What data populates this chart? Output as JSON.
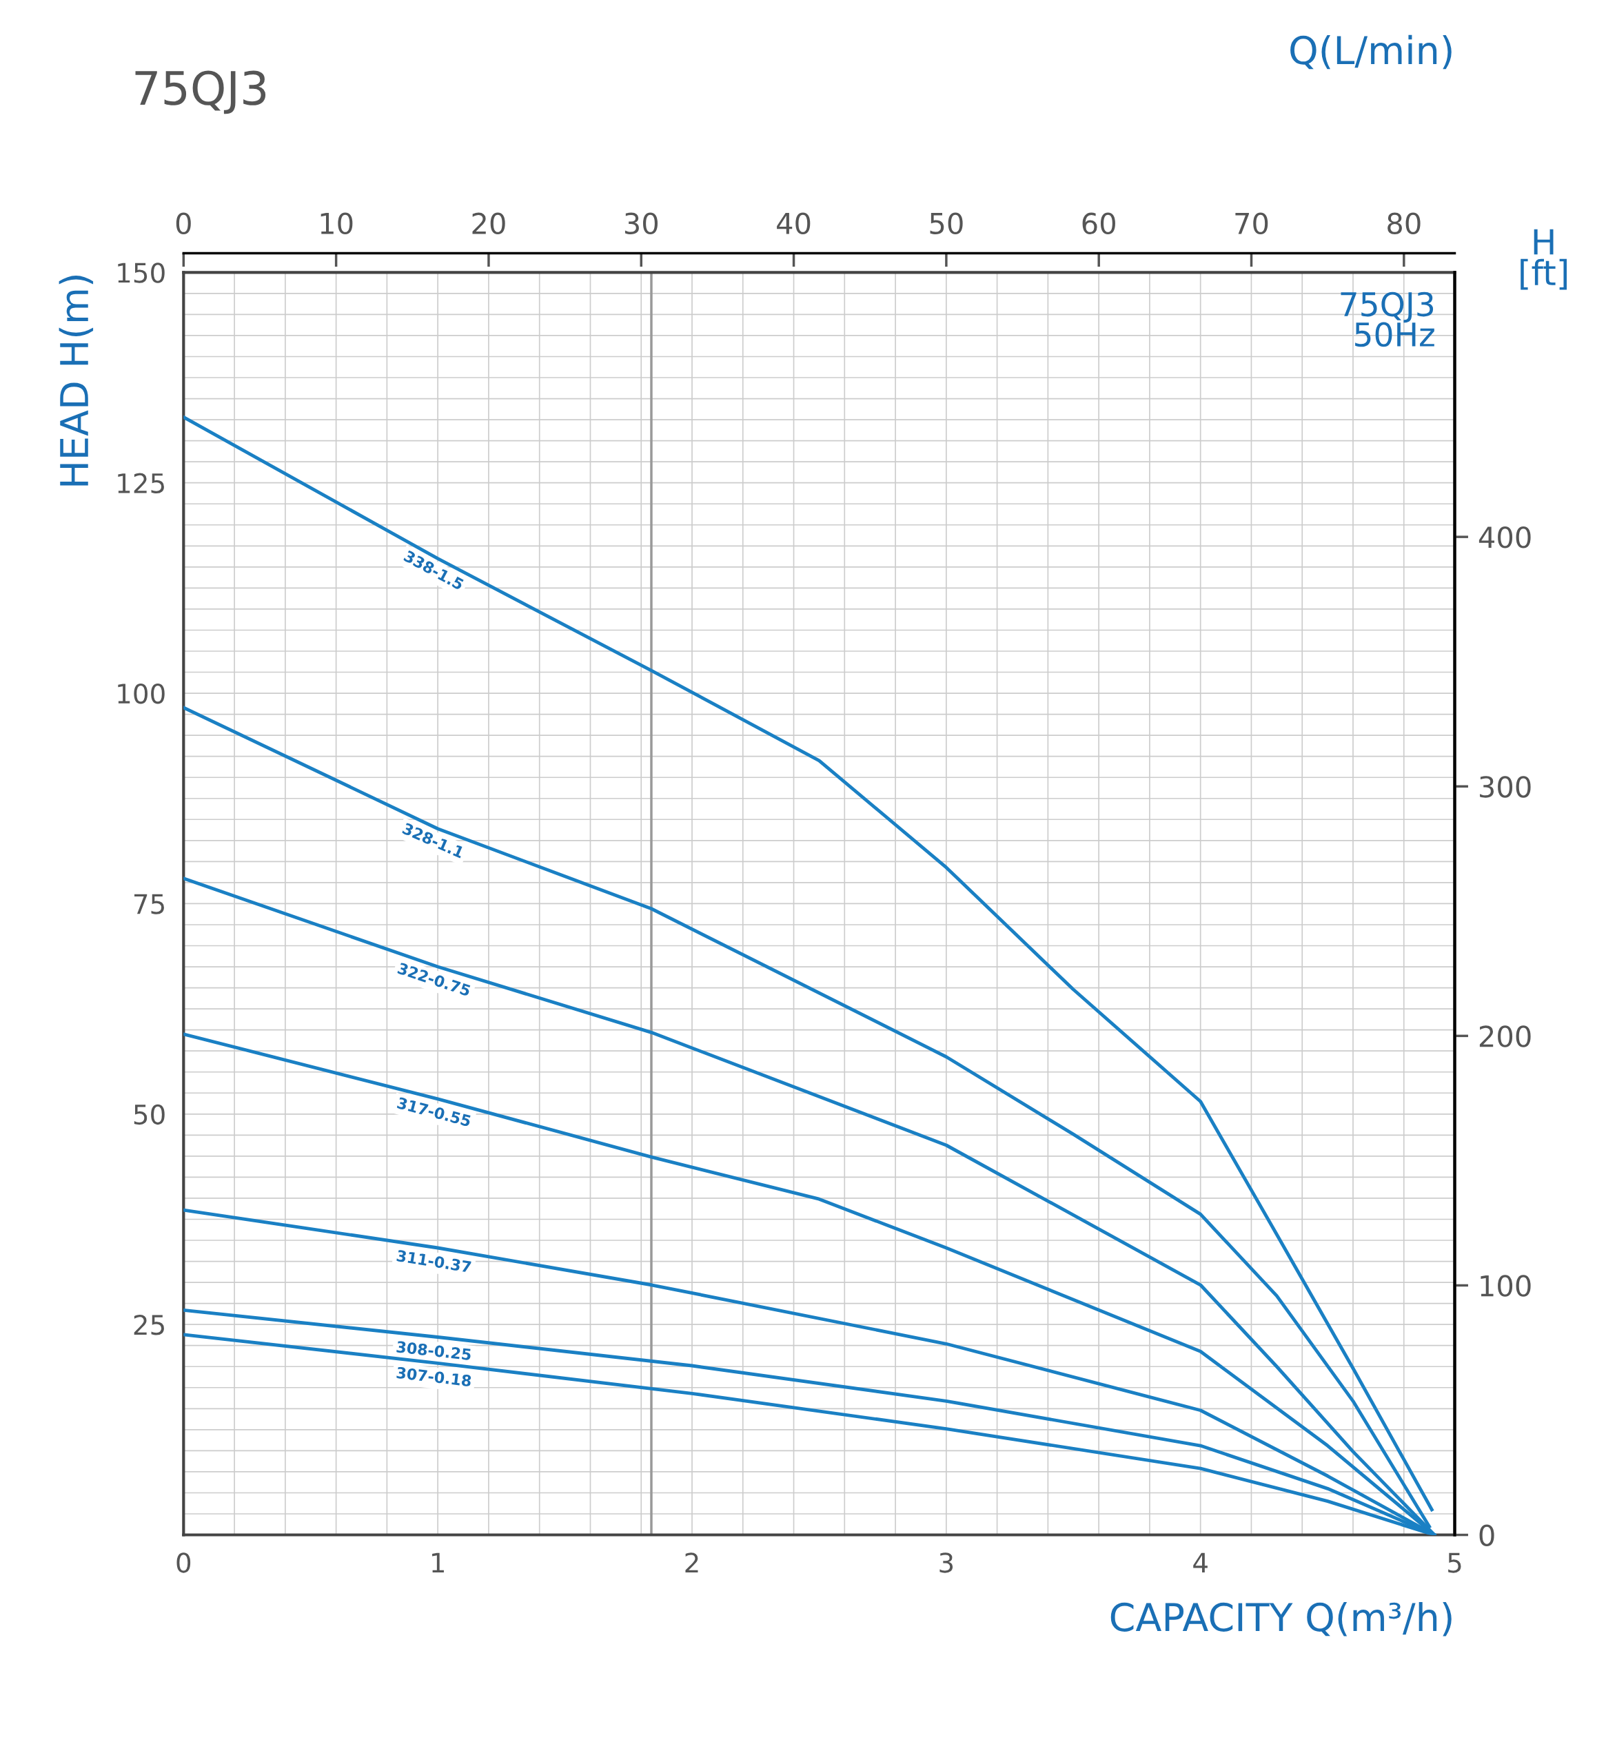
{
  "chart_data": {
    "type": "line",
    "title": "75QJ3",
    "xlabel": "CAPACITY Q(m³/h)",
    "ylabel": "HEAD H(m)",
    "x2label": "Q(L/min)",
    "y2label": "H\n[ft]",
    "annotations": [
      "75QJ3\n50Hz"
    ],
    "xlim": [
      0,
      5
    ],
    "xticks": [
      0,
      1,
      2,
      3,
      4,
      5
    ],
    "ylim": [
      0,
      150
    ],
    "yticks": [
      25,
      50,
      75,
      100,
      125,
      150
    ],
    "x2lim": [
      0,
      83.33
    ],
    "x2ticks": [
      0,
      10,
      20,
      30,
      40,
      50,
      60,
      70,
      80
    ],
    "y2lim": [
      0,
      506
    ],
    "y2ticks": [
      0,
      100,
      200,
      300,
      400
    ],
    "grid": true,
    "marker": "none",
    "line_style": "solid",
    "ref_lines": [
      {
        "axis": "x",
        "value": 1.84,
        "label": null,
        "color": "#999999"
      }
    ],
    "series": [
      {
        "name": "338-1.5",
        "color": "#1a80c4",
        "x": [
          0,
          1,
          1.84,
          2.5,
          3,
          3.5,
          4,
          4.3,
          4.6,
          4.91
        ],
        "values": [
          132.8,
          116,
          102.7,
          92,
          79.3,
          64.8,
          51.5,
          35.7,
          19.8,
          3
        ]
      },
      {
        "name": "328-1.1",
        "color": "#1a80c4",
        "x": [
          0,
          1,
          1.84,
          3,
          3.5,
          4,
          4.3,
          4.6,
          4.9
        ],
        "values": [
          98.3,
          83.9,
          74.4,
          56.8,
          47.6,
          38.1,
          28.4,
          15.9,
          1
        ]
      },
      {
        "name": "322-0.75",
        "color": "#1a80c4",
        "x": [
          0,
          1,
          1.84,
          3,
          4,
          4.3,
          4.6,
          4.92
        ],
        "values": [
          78,
          67.5,
          59.7,
          46.3,
          29.7,
          20,
          9.9,
          0
        ]
      },
      {
        "name": "317-0.55",
        "color": "#1a80c4",
        "x": [
          0,
          1,
          1.84,
          2.5,
          3,
          4,
          4.5,
          4.92
        ],
        "values": [
          59.5,
          51.8,
          44.9,
          39.9,
          34.1,
          21.8,
          10.6,
          0
        ]
      },
      {
        "name": "311-0.37",
        "color": "#1a80c4",
        "x": [
          0,
          1,
          1.84,
          3,
          4,
          4.5,
          4.92
        ],
        "values": [
          38.6,
          34.1,
          29.7,
          22.7,
          14.8,
          7,
          0
        ]
      },
      {
        "name": "308-0.25",
        "color": "#1a80c4",
        "x": [
          0,
          1,
          2,
          3,
          4,
          4.5,
          4.92
        ],
        "values": [
          26.7,
          23.5,
          20.1,
          15.9,
          10.6,
          5.5,
          0
        ]
      },
      {
        "name": "307-0.18",
        "color": "#1a80c4",
        "x": [
          0,
          1,
          2,
          3,
          4,
          4.5,
          4.92
        ],
        "values": [
          23.8,
          20.4,
          16.8,
          12.6,
          7.9,
          4,
          0
        ]
      }
    ]
  }
}
